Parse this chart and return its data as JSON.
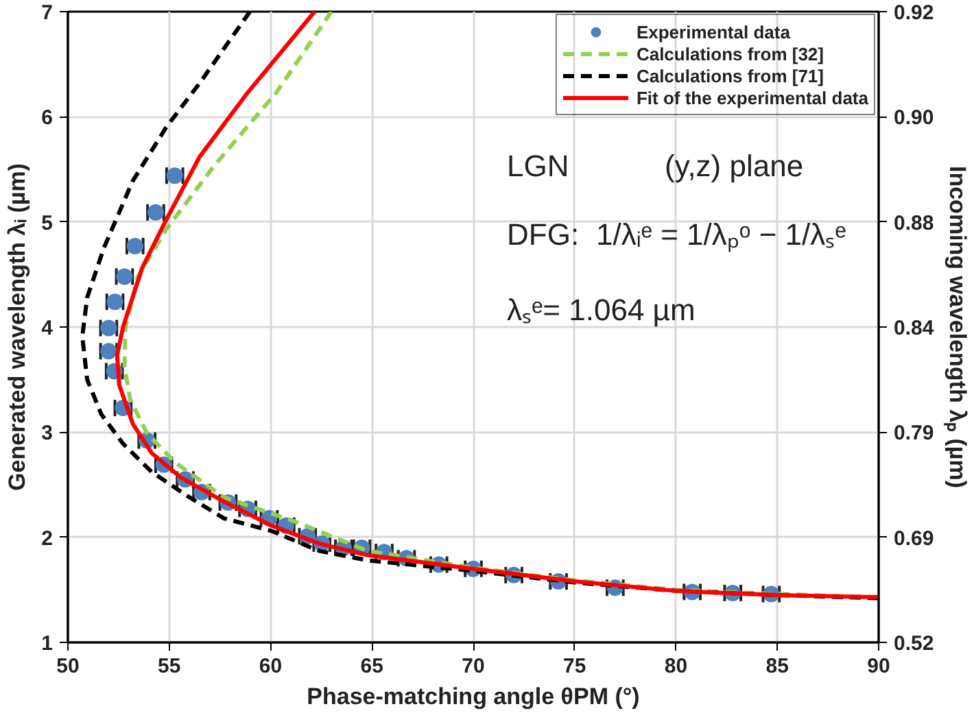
{
  "chart_data": {
    "type": "line",
    "xlabel": "Phase-matching angle θPM (°)",
    "ylabel": "Generated wavelength λᵢ (µm)",
    "y2label": "Incoming wavelength λₚ (µm)",
    "xlim": [
      50,
      90
    ],
    "xticks": [
      50,
      55,
      60,
      65,
      70,
      75,
      80,
      85,
      90
    ],
    "ylim": [
      1,
      7
    ],
    "yticks": [
      1,
      2,
      3,
      4,
      5,
      6,
      7
    ],
    "grid": true,
    "legend": "top right",
    "annotations": [
      "LGN",
      "(y,z) plane",
      "DFG:",
      "1/λᵢᵉ = 1/λₚᵒ − 1/λₛᵉ",
      "λₛᵉ= 1.064 µm",
      "0.52",
      "0.69",
      "0.79",
      "0.84",
      "0.88",
      "0.90",
      "0.92"
    ],
    "series": [
      {
        "name": "Experimental data",
        "type": "scatter",
        "marker": "circle",
        "color": "#4f81bd",
        "x": [
          55.27,
          54.33,
          53.31,
          52.79,
          52.32,
          52.01,
          52.01,
          52.29,
          52.72,
          53.9,
          54.73,
          55.79,
          56.6,
          57.9,
          58.87,
          59.93,
          60.76,
          61.82,
          62.53,
          63.6,
          64.5,
          65.6,
          66.7,
          68.3,
          70.0,
          72.0,
          74.2,
          77.0,
          80.8,
          82.8,
          84.7
        ],
        "values": [
          5.44,
          5.09,
          4.77,
          4.48,
          4.24,
          3.99,
          3.77,
          3.58,
          3.23,
          2.92,
          2.69,
          2.55,
          2.43,
          2.33,
          2.27,
          2.18,
          2.11,
          2.01,
          1.94,
          1.9,
          1.9,
          1.86,
          1.8,
          1.74,
          1.7,
          1.64,
          1.58,
          1.52,
          1.48,
          1.47,
          1.46
        ],
        "xerrors": [
          0.4,
          0.4,
          0.4,
          0.4,
          0.4,
          0.4,
          0.4,
          0.4,
          0.4,
          0.4,
          0.4,
          0.4,
          0.4,
          0.4,
          0.4,
          0.4,
          0.4,
          0.4,
          0.4,
          0.4,
          0.4,
          0.4,
          0.4,
          0.4,
          0.4,
          0.4,
          0.4,
          0.4,
          0.4,
          0.4,
          0.4
        ]
      },
      {
        "name": "Calculations from [32]",
        "line_style": "dashed",
        "color": "#92d050",
        "x": [
          63.0,
          60.28,
          57.2,
          54.85,
          53.43,
          52.84,
          52.79,
          53.07,
          53.9,
          55.3,
          57.7,
          61.2,
          64.8,
          70,
          75,
          80,
          85,
          90
        ],
        "values": [
          7,
          6.23,
          5.53,
          4.93,
          4.47,
          4.0,
          3.63,
          3.31,
          2.99,
          2.71,
          2.38,
          2.15,
          1.87,
          1.71,
          1.59,
          1.5,
          1.46,
          1.43
        ]
      },
      {
        "name": "Calculations from [71]",
        "line_style": "dashed",
        "color": "#000000",
        "x": [
          58.98,
          56.5,
          54.85,
          53.2,
          51.77,
          50.95,
          50.71,
          50.95,
          51.65,
          52.72,
          54.14,
          56.0,
          57.7,
          60.05,
          62.4,
          64.8,
          70,
          75,
          80,
          85,
          90
        ],
        "values": [
          7,
          6.32,
          5.9,
          5.39,
          4.75,
          4.28,
          3.91,
          3.5,
          3.17,
          2.89,
          2.62,
          2.38,
          2.18,
          2.06,
          1.87,
          1.78,
          1.68,
          1.57,
          1.49,
          1.45,
          1.42
        ]
      },
      {
        "name": "Fit of the experimental data",
        "line_style": "solid",
        "color": "#ff0000",
        "x": [
          62.17,
          58.87,
          56.5,
          54.85,
          53.66,
          52.72,
          52.43,
          52.53,
          53.2,
          54.14,
          55.56,
          57.7,
          60.05,
          62.4,
          64.8,
          70,
          75,
          80,
          85,
          90
        ],
        "values": [
          7,
          6.23,
          5.62,
          5.02,
          4.56,
          4.0,
          3.73,
          3.45,
          3.08,
          2.8,
          2.57,
          2.34,
          2.11,
          1.94,
          1.83,
          1.7,
          1.58,
          1.49,
          1.45,
          1.43
        ]
      }
    ]
  }
}
